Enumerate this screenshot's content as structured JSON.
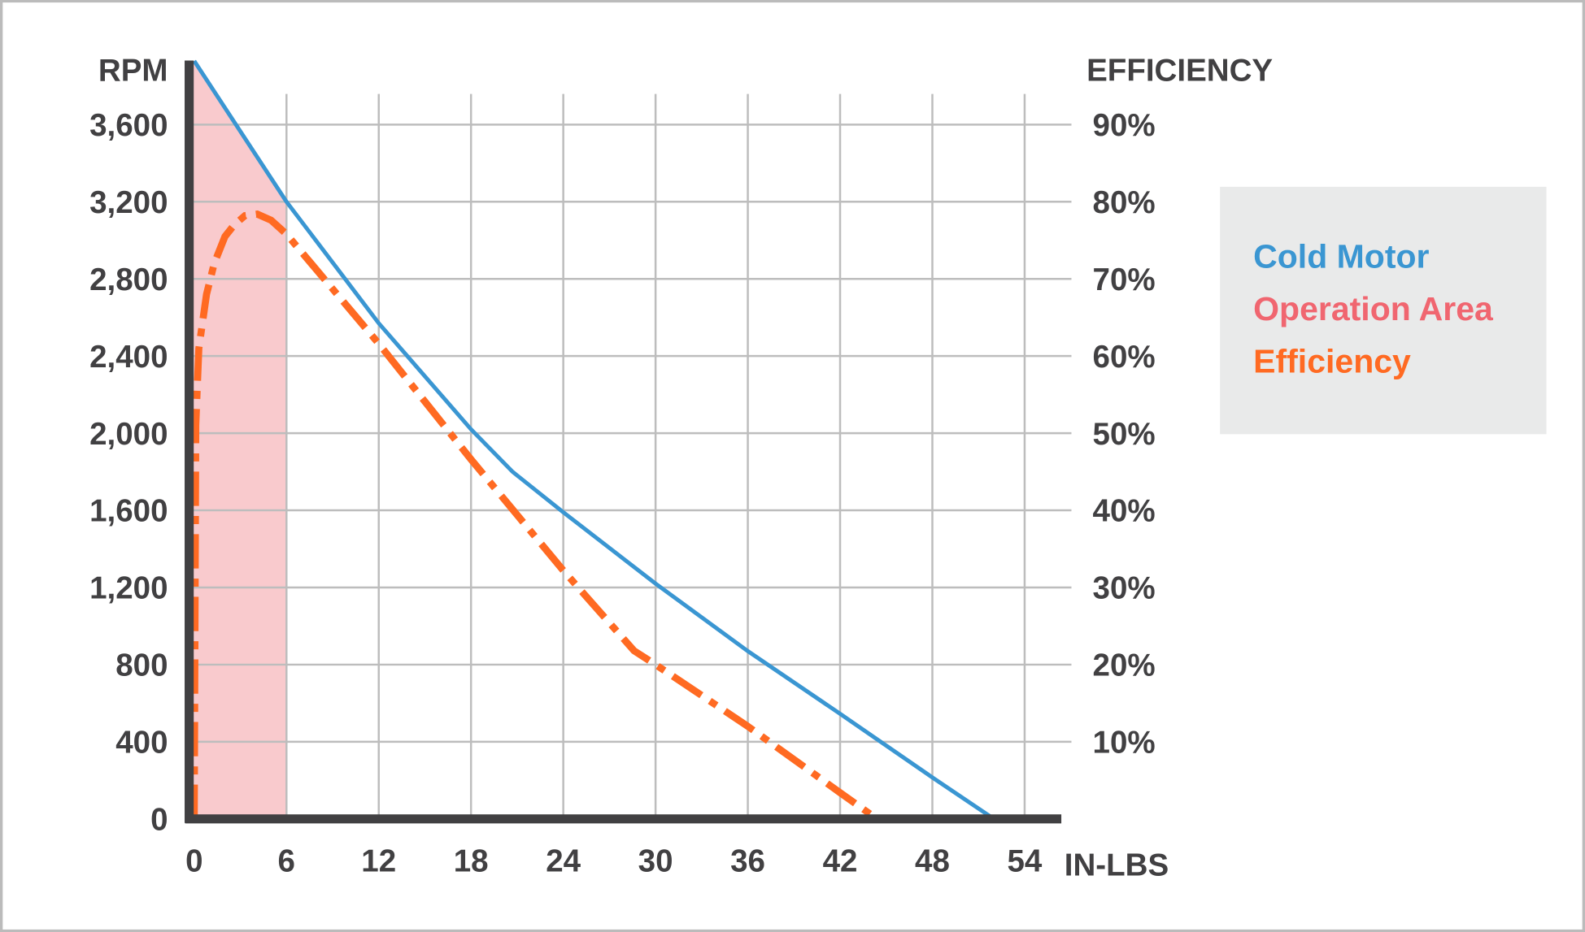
{
  "chart_data": {
    "type": "line",
    "xlabel": "IN-LBS",
    "ylabel": "RPM",
    "y2label": "EFFICIENCY",
    "xlim": [
      0,
      54
    ],
    "ylim": [
      0,
      3930
    ],
    "y2lim": [
      0,
      98.25
    ],
    "x_ticks": [
      "0",
      "6",
      "12",
      "18",
      "24",
      "30",
      "36",
      "42",
      "48",
      "54"
    ],
    "x_tick_values": [
      0,
      6,
      12,
      18,
      24,
      30,
      36,
      42,
      48,
      54
    ],
    "y_ticks": [
      "0",
      "400",
      "800",
      "1,200",
      "1,600",
      "2,000",
      "2,400",
      "2,800",
      "3,200",
      "3,600"
    ],
    "y_tick_values": [
      0,
      400,
      800,
      1200,
      1600,
      2000,
      2400,
      2800,
      3200,
      3600
    ],
    "y2_ticks": [
      "10%",
      "20%",
      "30%",
      "40%",
      "50%",
      "60%",
      "70%",
      "80%",
      "90%"
    ],
    "y2_tick_values": [
      10,
      20,
      30,
      40,
      50,
      60,
      70,
      80,
      90
    ],
    "grid": true,
    "legend_position": "right",
    "series": [
      {
        "name": "Cold Motor",
        "axis": "left",
        "style": "solid",
        "color": "#3a96d2",
        "x": [
          0,
          6,
          12,
          18,
          20.7,
          24,
          30,
          36,
          42,
          48,
          52
        ],
        "y": [
          3930,
          3200,
          2570,
          2020,
          1800,
          1590,
          1220,
          870,
          545,
          215,
          0
        ]
      },
      {
        "name": "Efficiency",
        "axis": "right",
        "style": "dash-dot",
        "color": "#ff6a22",
        "x": [
          0,
          0.1,
          0.3,
          0.8,
          1.3,
          2.0,
          2.6,
          3.3,
          4.1,
          5.0,
          6,
          12,
          18,
          24,
          28.6,
          30,
          36,
          42,
          44.4
        ],
        "y": [
          0,
          51,
          61,
          68,
          72,
          75.5,
          77,
          78.2,
          78.4,
          77.6,
          75.8,
          61.6,
          46.6,
          32.2,
          21.8,
          20,
          12,
          3.4,
          0
        ]
      },
      {
        "name": "Operation Area",
        "axis": "left",
        "style": "area",
        "color": "#f06670",
        "fill": "#f9cacd",
        "x_range": [
          0,
          6
        ]
      }
    ],
    "legend": [
      "Cold Motor",
      "Operation Area",
      "Efficiency"
    ]
  },
  "colors": {
    "axis": "#414042",
    "grid": "#bdbdbd",
    "legend_bg": "#e9eaea",
    "frame": "#bbbbbb"
  }
}
